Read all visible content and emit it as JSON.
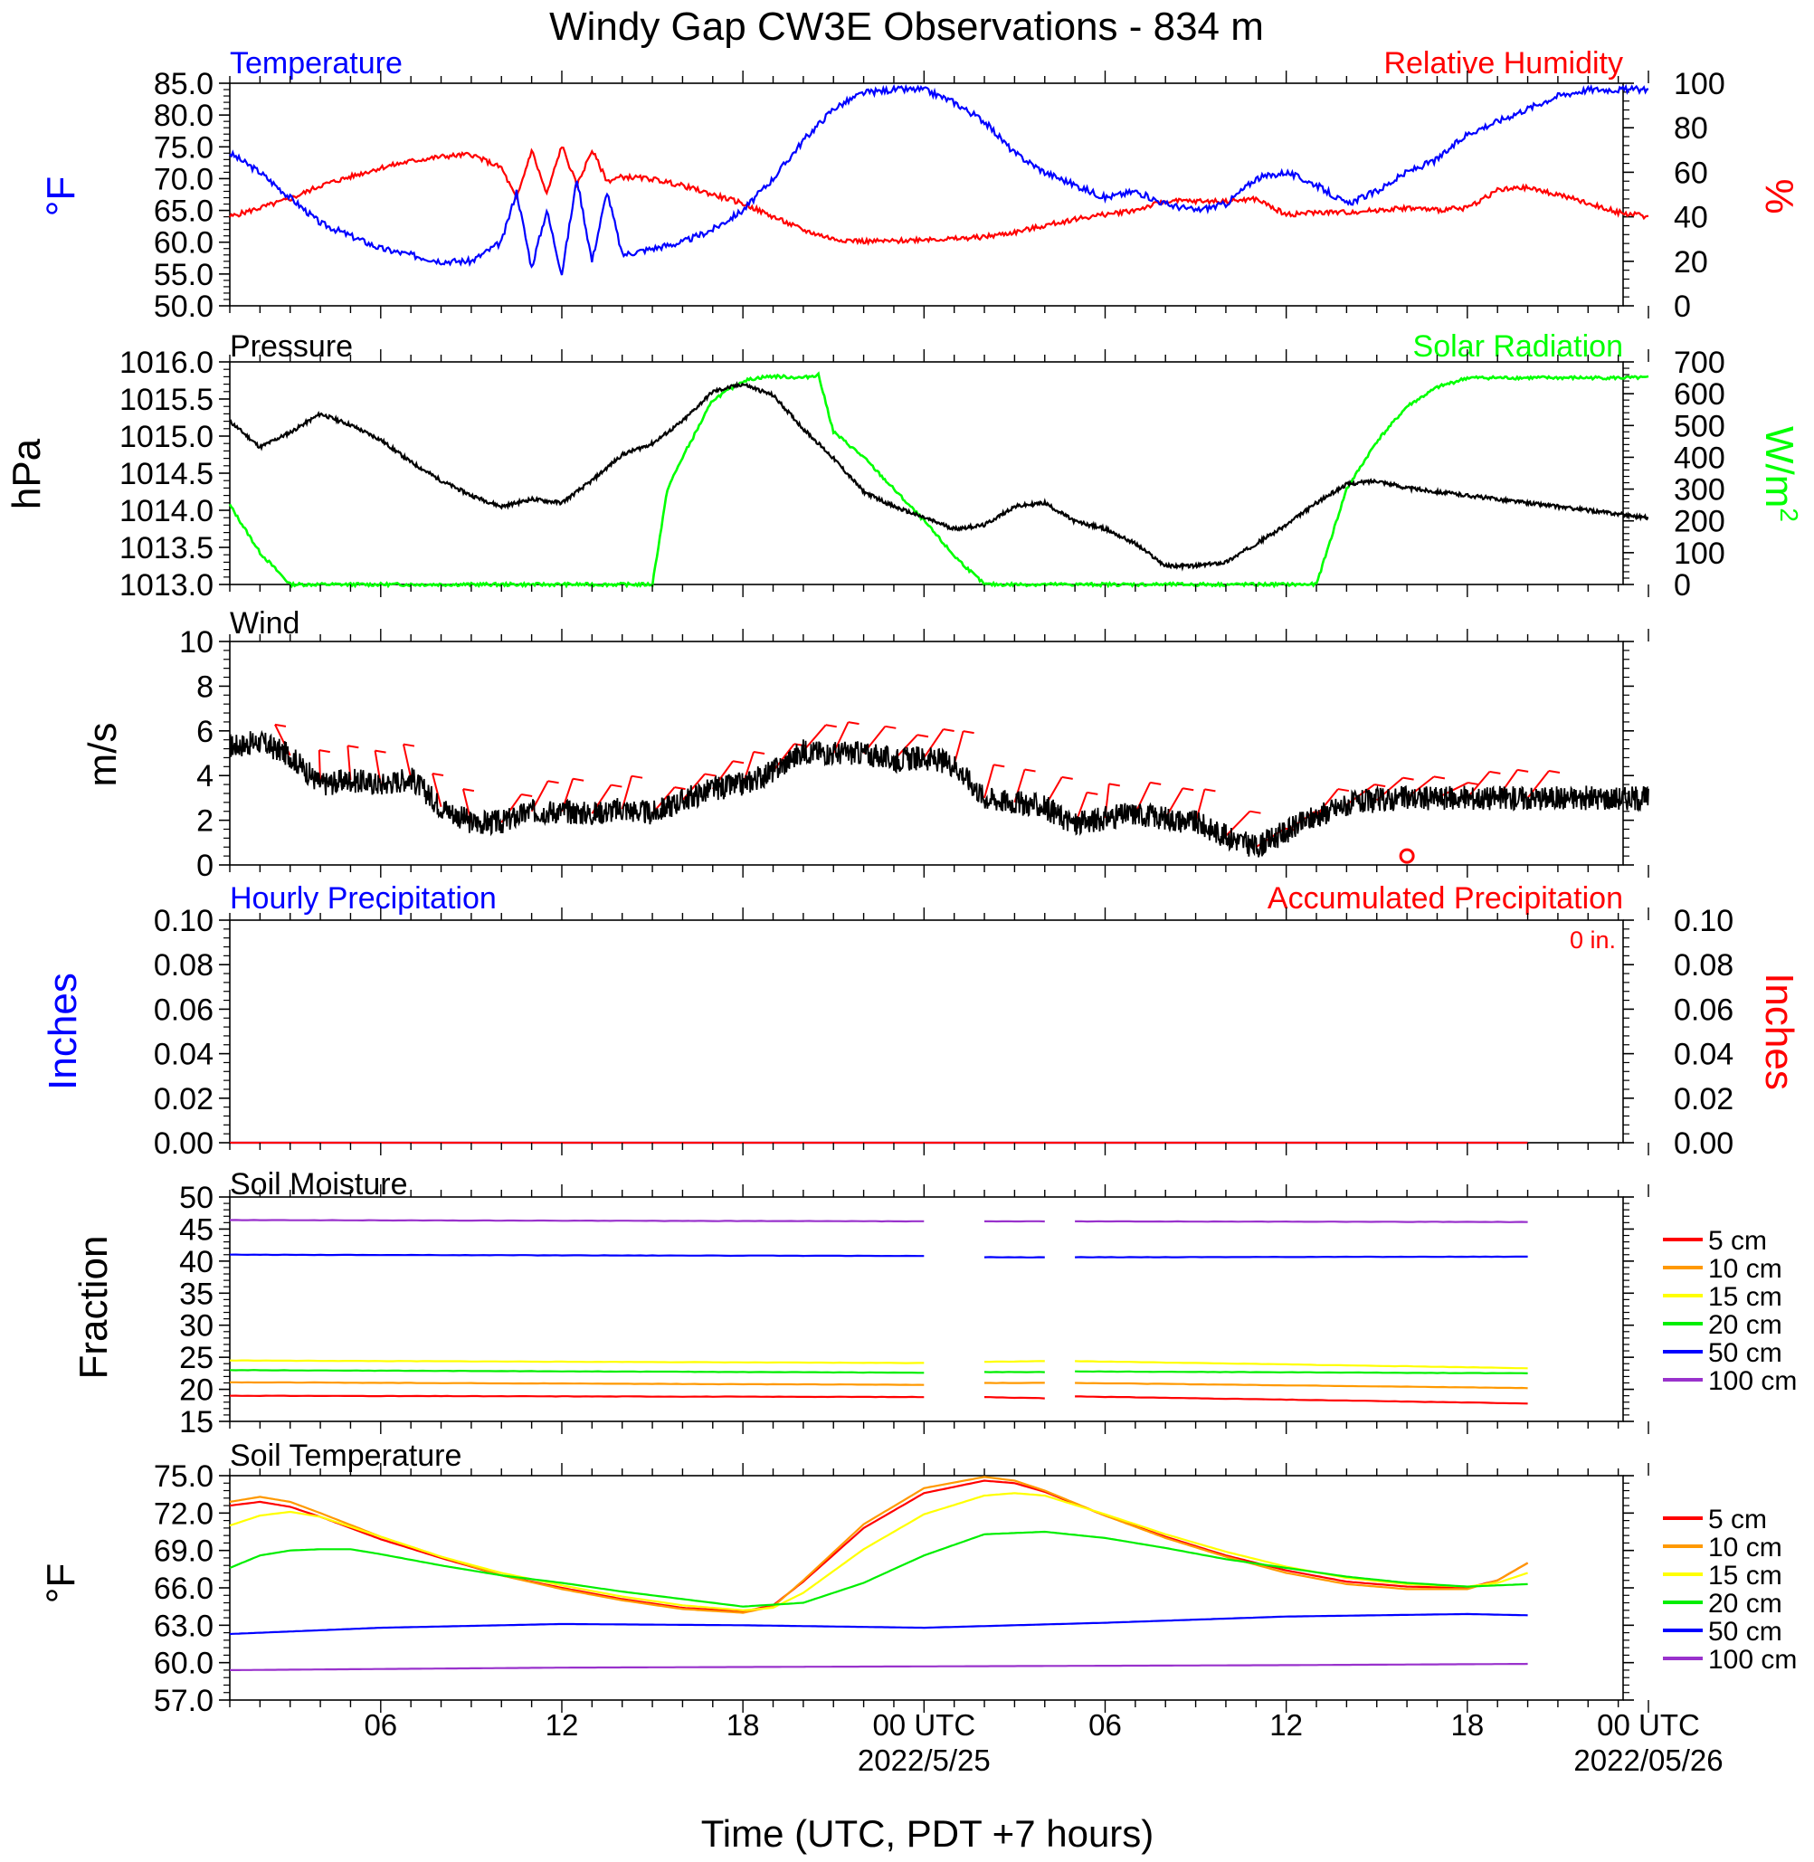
{
  "title": "Windy Gap CW3E Observations - 834 m",
  "x_axis": {
    "title": "Time (UTC, PDT +7 hours)",
    "tick_hours": [
      6,
      12,
      18,
      24,
      30,
      36,
      42,
      48
    ],
    "tick_labels": [
      "06",
      "12",
      "18",
      "00 UTC",
      "06",
      "12",
      "18",
      "00 UTC"
    ],
    "date_labels": [
      {
        "hour": 24,
        "text": "2022/5/25"
      },
      {
        "hour": 48,
        "text": "2022/05/26"
      }
    ],
    "range_hours": [
      1,
      48
    ]
  },
  "colors": {
    "temperature": "#0000ff",
    "humidity": "#ff0000",
    "pressure": "#000000",
    "solar": "#00ff00",
    "wind_barb": "#ff0000",
    "precip_hourly": "#0000ff",
    "precip_accum": "#ff0000",
    "depth_5": "#ff0000",
    "depth_10": "#ff9900",
    "depth_15": "#ffff00",
    "depth_20": "#00ee00",
    "depth_50": "#0000ff",
    "depth_100": "#9932cc"
  },
  "panels": {
    "temp_rh": {
      "left_title": "Temperature",
      "right_title": "Relative Humidity",
      "left_unit": "°F",
      "right_unit": "%",
      "left_ticks": [
        "85.0",
        "80.0",
        "75.0",
        "70.0",
        "65.0",
        "60.0",
        "55.0",
        "50.0"
      ],
      "right_ticks": [
        "100",
        "80",
        "60",
        "40",
        "20",
        "0"
      ]
    },
    "pressure": {
      "left_title": "Pressure",
      "right_title": "Solar Radiation",
      "left_unit": "hPa",
      "right_unit": "W/m",
      "right_unit_sup": "2",
      "left_ticks": [
        "1016.0",
        "1015.5",
        "1015.0",
        "1014.5",
        "1014.0",
        "1013.5",
        "1013.0"
      ],
      "right_ticks": [
        "700",
        "600",
        "500",
        "400",
        "300",
        "200",
        "100",
        "0"
      ]
    },
    "wind": {
      "left_title": "Wind",
      "left_unit": "m/s",
      "left_ticks": [
        "10",
        "8",
        "6",
        "4",
        "2",
        "0"
      ]
    },
    "precip": {
      "left_title": "Hourly Precipitation",
      "right_title": "Accumulated Precipitation",
      "left_unit": "Inches",
      "right_unit": "Inches",
      "accum_label": "0 in.",
      "left_ticks": [
        "0.10",
        "0.08",
        "0.06",
        "0.04",
        "0.02",
        "0.00"
      ],
      "right_ticks": [
        "0.10",
        "0.08",
        "0.06",
        "0.04",
        "0.02",
        "0.00"
      ]
    },
    "soil_moisture": {
      "left_title": "Soil Moisture",
      "left_unit": "Fraction",
      "left_ticks": [
        "50",
        "45",
        "40",
        "35",
        "30",
        "25",
        "20",
        "15"
      ]
    },
    "soil_temp": {
      "left_title": "Soil Temperature",
      "left_unit": "°F",
      "left_ticks": [
        "75.0",
        "72.0",
        "69.0",
        "66.0",
        "63.0",
        "60.0",
        "57.0"
      ]
    }
  },
  "legend": [
    "5 cm",
    "10 cm",
    "15 cm",
    "20 cm",
    "50 cm",
    "100 cm"
  ],
  "chart_data": [
    {
      "type": "line",
      "title": "Temperature / Relative Humidity",
      "ylim": [
        50,
        85
      ],
      "y2lim": [
        0,
        100
      ],
      "series": [
        {
          "name": "Temperature",
          "axis": "left",
          "x": [
            1,
            2,
            3,
            4,
            5,
            6,
            7,
            8,
            9,
            10,
            10.5,
            11,
            11.5,
            12,
            12.5,
            13,
            13.5,
            14,
            15,
            16,
            17,
            18,
            19,
            20,
            21,
            22,
            23,
            24,
            25,
            26,
            27,
            28,
            29,
            30,
            31,
            32,
            33,
            34,
            35,
            36,
            37,
            38,
            39,
            40,
            41,
            42,
            43,
            44,
            45,
            46,
            47,
            48
          ],
          "y": [
            74,
            71,
            67,
            63,
            61,
            59,
            58,
            57,
            57,
            60,
            68,
            56,
            65,
            55,
            70,
            57,
            68,
            58,
            59,
            60,
            62,
            65,
            70,
            76,
            81,
            83.5,
            84,
            84,
            82,
            79,
            74,
            71,
            69,
            67,
            68,
            66,
            65,
            66,
            70,
            71,
            69,
            66,
            68,
            71,
            73,
            77,
            79,
            81,
            83,
            84,
            84,
            84
          ]
        },
        {
          "name": "Relative Humidity",
          "axis": "right",
          "x": [
            1,
            2,
            3,
            4,
            5,
            6,
            7,
            8,
            9,
            10,
            10.5,
            11,
            11.5,
            12,
            12.5,
            13,
            13.5,
            14,
            15,
            16,
            17,
            18,
            19,
            20,
            21,
            22,
            23,
            24,
            25,
            26,
            27,
            28,
            29,
            30,
            31,
            32,
            33,
            34,
            35,
            36,
            37,
            38,
            39,
            40,
            41,
            42,
            43,
            44,
            45,
            46,
            47,
            48
          ],
          "y": [
            40,
            44,
            48,
            54,
            58,
            62,
            65,
            67,
            68,
            62,
            48,
            70,
            50,
            72,
            54,
            70,
            56,
            58,
            57,
            54,
            50,
            46,
            40,
            34,
            30,
            29,
            29,
            30,
            30,
            31,
            33,
            36,
            39,
            41,
            43,
            47,
            47,
            47,
            48,
            41,
            42,
            42,
            43,
            44,
            43,
            44,
            52,
            53,
            50,
            46,
            42,
            40
          ]
        }
      ]
    },
    {
      "type": "line",
      "title": "Pressure / Solar Radiation",
      "ylim": [
        1013,
        1016
      ],
      "y2lim": [
        0,
        700
      ],
      "series": [
        {
          "name": "Pressure",
          "axis": "left",
          "x": [
            1,
            2,
            3,
            4,
            5,
            6,
            7,
            8,
            9,
            10,
            11,
            12,
            13,
            14,
            15,
            16,
            17,
            18,
            19,
            20,
            21,
            22,
            23,
            24,
            25,
            26,
            27,
            28,
            29,
            30,
            31,
            32,
            33,
            34,
            35,
            36,
            37,
            38,
            39,
            40,
            41,
            42,
            43,
            44,
            45,
            46,
            47,
            48
          ],
          "y": [
            1015.2,
            1014.85,
            1015.05,
            1015.3,
            1015.15,
            1014.95,
            1014.65,
            1014.4,
            1014.2,
            1014.05,
            1014.15,
            1014.1,
            1014.4,
            1014.75,
            1014.9,
            1015.2,
            1015.6,
            1015.7,
            1015.55,
            1015.1,
            1014.7,
            1014.25,
            1014.05,
            1013.9,
            1013.75,
            1013.8,
            1014.05,
            1014.1,
            1013.85,
            1013.75,
            1013.55,
            1013.25,
            1013.25,
            1013.3,
            1013.55,
            1013.8,
            1014.1,
            1014.35,
            1014.4,
            1014.3,
            1014.25,
            1014.2,
            1014.15,
            1014.1,
            1014.05,
            1014.0,
            1013.95,
            1013.9
          ]
        },
        {
          "name": "Solar Radiation",
          "axis": "right",
          "x": [
            1,
            2,
            3,
            4,
            5,
            6,
            7,
            8,
            9,
            10,
            11,
            12,
            13,
            14,
            15,
            15.5,
            16,
            17,
            18,
            18.5,
            19,
            20,
            20.5,
            21,
            22,
            23,
            24,
            25,
            26,
            27,
            28,
            29,
            30,
            31,
            32,
            33,
            34,
            35,
            36,
            37,
            38,
            39,
            40,
            41,
            42,
            43,
            44,
            45,
            46,
            47,
            48
          ],
          "y": [
            250,
            100,
            0,
            0,
            0,
            0,
            0,
            0,
            0,
            0,
            0,
            0,
            0,
            0,
            0,
            300,
            400,
            580,
            640,
            650,
            655,
            650,
            660,
            480,
            400,
            300,
            200,
            90,
            0,
            0,
            0,
            0,
            0,
            0,
            0,
            0,
            0,
            0,
            0,
            0,
            300,
            450,
            560,
            620,
            650,
            650,
            650,
            650,
            650,
            650,
            650
          ]
        }
      ]
    },
    {
      "type": "line",
      "title": "Wind",
      "ylim": [
        0,
        10
      ],
      "series": [
        {
          "name": "Wind speed",
          "x": [
            1,
            2,
            3,
            4,
            5,
            6,
            7,
            8,
            9,
            10,
            11,
            12,
            13,
            14,
            15,
            16,
            17,
            18,
            19,
            20,
            21,
            22,
            23,
            24,
            25,
            26,
            27,
            28,
            29,
            30,
            31,
            32,
            33,
            34,
            35,
            36,
            37,
            38,
            39,
            40,
            41,
            42,
            43,
            44,
            45,
            46,
            47,
            48
          ],
          "y": [
            5.3,
            5.5,
            4.9,
            3.6,
            3.8,
            3.6,
            3.9,
            2.6,
            1.9,
            1.9,
            2.4,
            2.4,
            2.3,
            2.5,
            2.3,
            2.9,
            3.4,
            3.6,
            4.2,
            5.1,
            5.0,
            5.0,
            4.7,
            4.8,
            4.5,
            3.0,
            2.8,
            2.6,
            1.8,
            2.1,
            2.3,
            2.1,
            1.9,
            1.3,
            0.8,
            1.5,
            2.2,
            2.7,
            2.9,
            3.0,
            3.0,
            3.0,
            3.0,
            3.0,
            3.0,
            3.0,
            3.0,
            3.0
          ]
        }
      ]
    },
    {
      "type": "line",
      "title": "Precipitation",
      "ylim": [
        0,
        0.1
      ],
      "series": [
        {
          "name": "Hourly Precipitation",
          "x": [
            1,
            44
          ],
          "y": [
            0,
            0
          ]
        },
        {
          "name": "Accumulated Precipitation",
          "x": [
            1,
            44
          ],
          "y": [
            0,
            0
          ]
        }
      ]
    },
    {
      "type": "line",
      "title": "Soil Moisture",
      "ylim": [
        15,
        50
      ],
      "series": [
        {
          "name": "5 cm",
          "x": [
            1,
            24,
            26,
            28,
            29,
            44
          ],
          "y": [
            19.0,
            18.8,
            18.8,
            18.6,
            18.9,
            17.8
          ]
        },
        {
          "name": "10 cm",
          "x": [
            1,
            24,
            26,
            28,
            29,
            44
          ],
          "y": [
            21.1,
            20.7,
            21.0,
            21.0,
            21.0,
            20.2
          ]
        },
        {
          "name": "15 cm",
          "x": [
            1,
            24,
            26,
            28,
            29,
            44
          ],
          "y": [
            24.5,
            24.1,
            24.3,
            24.4,
            24.4,
            23.3
          ]
        },
        {
          "name": "20 cm",
          "x": [
            1,
            24,
            26,
            28,
            29,
            44
          ],
          "y": [
            23.0,
            22.6,
            22.7,
            22.7,
            22.8,
            22.5
          ]
        },
        {
          "name": "50 cm",
          "x": [
            1,
            24,
            26,
            28,
            29,
            44
          ],
          "y": [
            41.0,
            40.8,
            40.6,
            40.6,
            40.6,
            40.7
          ]
        },
        {
          "name": "100 cm",
          "x": [
            1,
            24,
            26,
            28,
            29,
            44
          ],
          "y": [
            46.4,
            46.2,
            46.2,
            46.2,
            46.2,
            46.1
          ]
        }
      ]
    },
    {
      "type": "line",
      "title": "Soil Temperature",
      "ylim": [
        57,
        75
      ],
      "series": [
        {
          "name": "5 cm",
          "x": [
            1,
            2,
            3,
            4,
            6,
            8,
            10,
            12,
            14,
            16,
            18,
            19,
            20,
            22,
            24,
            26,
            27,
            28,
            30,
            32,
            34,
            36,
            38,
            40,
            42,
            43,
            44
          ],
          "y": [
            72.6,
            72.9,
            72.5,
            71.7,
            69.9,
            68.4,
            67.0,
            66.0,
            65.1,
            64.4,
            64.1,
            64.6,
            66.5,
            70.8,
            73.6,
            74.6,
            74.4,
            73.7,
            71.8,
            70.1,
            68.6,
            67.4,
            66.5,
            66.1,
            66.0,
            66.6,
            68.0
          ]
        },
        {
          "name": "10 cm",
          "x": [
            1,
            2,
            3,
            4,
            6,
            8,
            10,
            12,
            14,
            16,
            18,
            19,
            20,
            22,
            24,
            26,
            27,
            28,
            30,
            32,
            34,
            36,
            38,
            40,
            42,
            43,
            44
          ],
          "y": [
            72.9,
            73.3,
            72.9,
            72.0,
            70.1,
            68.5,
            67.0,
            65.9,
            65.0,
            64.3,
            64.0,
            64.5,
            66.6,
            71.1,
            74.0,
            74.9,
            74.6,
            73.8,
            71.8,
            70.0,
            68.5,
            67.2,
            66.3,
            65.9,
            65.9,
            66.6,
            68.0
          ]
        },
        {
          "name": "15 cm",
          "x": [
            1,
            2,
            3,
            4,
            6,
            8,
            10,
            12,
            14,
            16,
            18,
            19,
            20,
            22,
            24,
            26,
            27,
            28,
            30,
            32,
            34,
            36,
            38,
            40,
            42,
            43,
            44
          ],
          "y": [
            71.0,
            71.8,
            72.1,
            71.7,
            70.1,
            68.5,
            67.2,
            66.2,
            65.3,
            64.6,
            64.2,
            64.4,
            65.6,
            69.1,
            71.9,
            73.4,
            73.6,
            73.4,
            71.9,
            70.3,
            68.9,
            67.7,
            66.8,
            66.3,
            66.1,
            66.4,
            67.2
          ]
        },
        {
          "name": "20 cm",
          "x": [
            1,
            2,
            3,
            4,
            5,
            6,
            8,
            10,
            12,
            14,
            16,
            18,
            20,
            22,
            24,
            26,
            28,
            30,
            32,
            34,
            36,
            38,
            40,
            42,
            44
          ],
          "y": [
            67.6,
            68.6,
            69.0,
            69.1,
            69.1,
            68.7,
            67.8,
            67.0,
            66.4,
            65.7,
            65.1,
            64.5,
            64.8,
            66.4,
            68.6,
            70.3,
            70.5,
            70.0,
            69.2,
            68.3,
            67.6,
            66.9,
            66.4,
            66.1,
            66.3
          ]
        },
        {
          "name": "50 cm",
          "x": [
            1,
            6,
            12,
            18,
            24,
            30,
            36,
            42,
            44
          ],
          "y": [
            62.3,
            62.8,
            63.1,
            63.0,
            62.8,
            63.2,
            63.7,
            63.9,
            63.8
          ]
        },
        {
          "name": "100 cm",
          "x": [
            1,
            12,
            24,
            36,
            44
          ],
          "y": [
            59.4,
            59.6,
            59.7,
            59.8,
            59.9
          ]
        }
      ]
    }
  ]
}
